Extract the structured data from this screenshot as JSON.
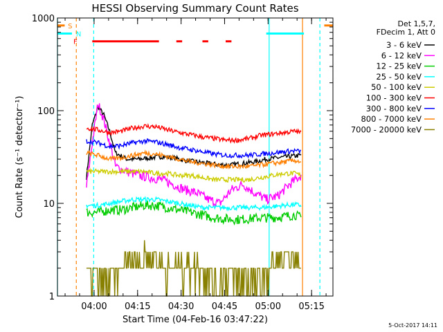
{
  "chart_data": {
    "type": "line",
    "title": "HESSI Observing Summary Count Rates",
    "xlabel": "Start Time (04-Feb-16 03:47:22)",
    "ylabel": "Count Rate (s⁻¹ detector⁻¹)",
    "yscale": "log",
    "ylim": [
      1,
      1000
    ],
    "xlim_minutes": [
      0,
      95
    ],
    "x_ticks": [
      "04:00",
      "04:15",
      "04:30",
      "04:45",
      "05:00",
      "05:15"
    ],
    "y_ticks": [
      "1",
      "10",
      "100",
      "1000"
    ],
    "grid": false,
    "legend_position": "top-right",
    "legend_header": [
      "Det 1,5,7,",
      "FDecim 1, Att 0"
    ],
    "series": [
      {
        "name": "3 - 6 keV",
        "color": "#000000",
        "x": [
          10,
          12,
          14,
          16,
          18,
          20,
          24,
          28,
          32,
          36,
          40,
          44,
          48,
          52,
          56,
          60,
          64,
          68,
          72,
          76,
          80,
          84
        ],
        "y": [
          19,
          70,
          110,
          90,
          60,
          35,
          30,
          30,
          31,
          32,
          31,
          29,
          28,
          27,
          26,
          26,
          27,
          28,
          30,
          31,
          32,
          33
        ]
      },
      {
        "name": "6 - 12 keV",
        "color": "#ff00ff",
        "x": [
          10,
          12,
          14,
          16,
          18,
          20,
          24,
          28,
          32,
          36,
          40,
          44,
          48,
          52,
          56,
          60,
          64,
          68,
          72,
          76,
          80,
          84
        ],
        "y": [
          15,
          45,
          120,
          80,
          45,
          25,
          22,
          20,
          19,
          18,
          16,
          14,
          13,
          11,
          10,
          14,
          16,
          13,
          11,
          12,
          16,
          20
        ]
      },
      {
        "name": "12 - 25 keV",
        "color": "#00cc00",
        "x": [
          10,
          14,
          18,
          22,
          26,
          30,
          34,
          38,
          42,
          46,
          50,
          54,
          58,
          62,
          66,
          70,
          74,
          78,
          82,
          84
        ],
        "y": [
          8,
          8,
          8.5,
          8.5,
          9,
          9.5,
          9.5,
          9,
          8.5,
          8,
          7.5,
          7,
          6.8,
          6.7,
          6.8,
          7,
          7,
          7.2,
          7.5,
          7
        ]
      },
      {
        "name": "25 - 50 keV",
        "color": "#00ffff",
        "x": [
          10,
          14,
          18,
          22,
          26,
          30,
          34,
          38,
          42,
          46,
          50,
          54,
          58,
          62,
          66,
          70,
          74,
          78,
          82,
          84
        ],
        "y": [
          9.5,
          9.5,
          10,
          10.5,
          11,
          11,
          11,
          10.5,
          10,
          9.5,
          9,
          9,
          9,
          9,
          9,
          9,
          9.2,
          9.5,
          9.7,
          9.5
        ]
      },
      {
        "name": "50 - 100 keV",
        "color": "#cccc00",
        "x": [
          10,
          14,
          18,
          22,
          26,
          30,
          34,
          38,
          42,
          46,
          50,
          54,
          58,
          62,
          66,
          70,
          74,
          78,
          82,
          84
        ],
        "y": [
          22,
          22,
          22,
          22,
          22,
          22,
          21,
          21,
          20,
          20,
          19,
          18,
          18,
          18,
          18,
          19,
          20,
          21,
          21,
          20
        ]
      },
      {
        "name": "100 - 300 keV",
        "color": "#ff0000",
        "x": [
          10,
          14,
          18,
          22,
          26,
          30,
          34,
          38,
          42,
          46,
          50,
          54,
          58,
          62,
          66,
          70,
          74,
          78,
          82,
          84
        ],
        "y": [
          65,
          62,
          58,
          60,
          65,
          68,
          67,
          62,
          58,
          55,
          52,
          50,
          48,
          48,
          50,
          54,
          56,
          58,
          60,
          58
        ]
      },
      {
        "name": "300 - 800 keV",
        "color": "#0000ff",
        "x": [
          10,
          14,
          18,
          22,
          26,
          30,
          34,
          38,
          42,
          46,
          50,
          54,
          58,
          62,
          66,
          70,
          74,
          78,
          82,
          84
        ],
        "y": [
          47,
          45,
          41,
          42,
          45,
          47,
          46,
          43,
          40,
          38,
          36,
          34,
          33,
          33,
          33,
          34,
          35,
          36,
          37,
          36
        ]
      },
      {
        "name": "800 - 7000 keV",
        "color": "#ff8000",
        "x": [
          10,
          14,
          18,
          22,
          26,
          30,
          34,
          38,
          42,
          46,
          50,
          54,
          58,
          62,
          66,
          70,
          74,
          78,
          82,
          84
        ],
        "y": [
          35,
          33,
          30,
          31,
          33,
          35,
          34,
          32,
          30,
          28,
          27,
          26,
          25,
          25,
          25,
          26,
          27,
          28,
          29,
          28
        ]
      },
      {
        "name": "7000 - 20000 keV",
        "color": "#888000",
        "x": [
          10,
          14,
          18,
          22,
          26,
          30,
          34,
          38,
          42,
          46,
          50,
          54,
          58,
          62,
          66,
          70,
          74,
          78,
          82,
          84
        ],
        "y": [
          1.5,
          1.5,
          1.5,
          2,
          2.5,
          2.5,
          2.5,
          2,
          2,
          2,
          2,
          1.5,
          1.5,
          1.5,
          1.5,
          1.5,
          2,
          2.5,
          2.5,
          2
        ]
      }
    ],
    "annotations": [
      {
        "label": "S",
        "color": "#ff8000",
        "segments_min": [
          [
            0,
            2.5
          ],
          [
            92,
            95
          ]
        ]
      },
      {
        "label": "N",
        "color": "#00ffff",
        "segments_min": [
          [
            0,
            5
          ],
          [
            72,
            85
          ]
        ]
      },
      {
        "label": "F",
        "color": "#ff0000",
        "segments_min": [
          [
            12,
            35
          ],
          [
            41,
            43
          ],
          [
            50,
            52
          ],
          [
            58,
            60
          ]
        ]
      }
    ],
    "vertical_lines_min": [
      {
        "x": 0,
        "color": "#00ffff",
        "style": "solid"
      },
      {
        "x": 6.5,
        "color": "#ff8000",
        "style": "dashed"
      },
      {
        "x": 12.5,
        "color": "#00ffff",
        "style": "dashed"
      },
      {
        "x": 73,
        "color": "#00ffff",
        "style": "solid"
      },
      {
        "x": 84.5,
        "color": "#ff8000",
        "style": "solid"
      },
      {
        "x": 90.5,
        "color": "#00ffff",
        "style": "dashed"
      }
    ]
  },
  "footer_timestamp": "5-Oct-2017 14:11"
}
